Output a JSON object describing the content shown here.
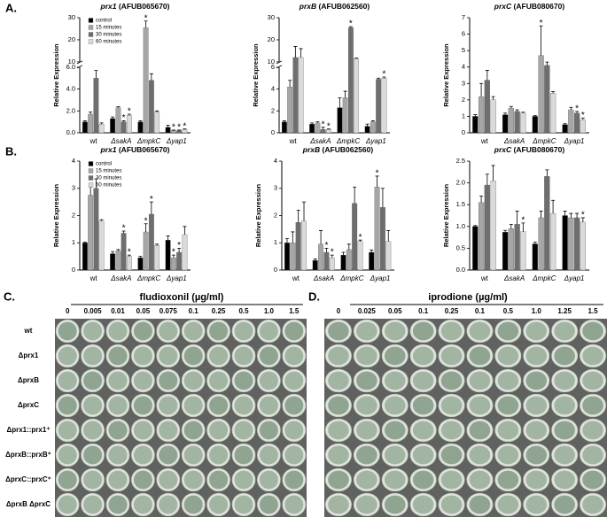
{
  "panel_labels": [
    "A.",
    "B."
  ],
  "chart_data": [
    {
      "type": "bar",
      "gene": "prx1",
      "locus": "(AFUB065670)",
      "ylabel": "Relative Expression",
      "categories": [
        "wt",
        "ΔsakA",
        "ΔmpkC",
        "Δyap1"
      ],
      "ylim": [
        0,
        30
      ],
      "ybreak": [
        6,
        10
      ],
      "yticks": [
        {
          "value": 0,
          "label": "0.0"
        },
        {
          "value": 2,
          "label": "2.0"
        },
        {
          "value": 4,
          "label": "4.0"
        },
        {
          "value": 6,
          "label": "6.0"
        },
        10,
        20,
        30
      ],
      "legend": "upper left",
      "series": [
        {
          "name": "control",
          "color": "#000000",
          "values": [
            1.0,
            1.3,
            1.0,
            0.5
          ],
          "errors": [
            0.1,
            0.15,
            0.1,
            0.2
          ]
        },
        {
          "name": "15 minutes",
          "color": "#a6a6a6",
          "values": [
            1.7,
            2.3,
            25.5,
            0.2
          ],
          "errors": [
            0.2,
            0.1,
            3.0,
            0.05
          ],
          "significance": [
            null,
            null,
            "*",
            "*"
          ]
        },
        {
          "name": "30 minutes",
          "color": "#6e6e6e",
          "values": [
            5.0,
            1.0,
            4.8,
            0.2
          ],
          "errors": [
            0.7,
            0.1,
            0.6,
            0.05
          ],
          "significance": [
            null,
            "*",
            null,
            "*"
          ]
        },
        {
          "name": "60 minutes",
          "color": "#dadada",
          "values": [
            0.8,
            1.6,
            1.9,
            0.3
          ],
          "errors": [
            0.1,
            0.1,
            0.1,
            0.05
          ],
          "significance": [
            null,
            "*",
            null,
            "*"
          ]
        }
      ]
    },
    {
      "type": "bar",
      "gene": "prxB",
      "locus": "(AFUB062560)",
      "ylabel": "Relative Expression",
      "categories": [
        "wt",
        "ΔsakA",
        "ΔmpkC",
        "Δyap1"
      ],
      "ylim": [
        0,
        30
      ],
      "ybreak": [
        6,
        10
      ],
      "yticks": [
        0,
        2,
        4,
        6,
        10,
        20,
        30
      ],
      "series": [
        {
          "color": "#000000",
          "values": [
            1.0,
            0.8,
            2.3,
            0.6
          ],
          "errors": [
            0.1,
            0.1,
            0.9,
            0.2
          ]
        },
        {
          "color": "#a6a6a6",
          "values": [
            4.2,
            0.9,
            3.2,
            1.0
          ],
          "errors": [
            0.6,
            0.1,
            0.6,
            0.1
          ]
        },
        {
          "color": "#6e6e6e",
          "values": [
            12,
            0.3,
            25.5,
            4.9
          ],
          "errors": [
            5,
            0.2,
            0.5,
            0.1
          ],
          "significance": [
            null,
            "*",
            "*",
            null
          ]
        },
        {
          "color": "#dadada",
          "values": [
            12,
            0.3,
            11.5,
            5.0
          ],
          "errors": [
            4,
            0.05,
            0.3,
            0.1
          ],
          "significance": [
            null,
            "*",
            null,
            "*"
          ]
        }
      ]
    },
    {
      "type": "bar",
      "gene": "prxC",
      "locus": "(AFUB080670)",
      "ylabel": "Relative Expression",
      "categories": [
        "wt",
        "ΔsakA",
        "ΔmpkC",
        "Δyap1"
      ],
      "ylim": [
        0,
        7
      ],
      "yticks": [
        0,
        1,
        2,
        3,
        4,
        5,
        6,
        7
      ],
      "series": [
        {
          "color": "#000000",
          "values": [
            1.0,
            1.1,
            1.0,
            0.5
          ],
          "errors": [
            0.1,
            0.1,
            0.05,
            0.05
          ]
        },
        {
          "color": "#a6a6a6",
          "values": [
            2.2,
            1.5,
            4.7,
            1.4
          ],
          "errors": [
            0.8,
            0.1,
            1.8,
            0.15
          ],
          "significance": [
            null,
            null,
            "*",
            null
          ]
        },
        {
          "color": "#6e6e6e",
          "values": [
            3.2,
            1.3,
            4.1,
            1.2
          ],
          "errors": [
            0.6,
            0.1,
            0.2,
            0.1
          ],
          "significance": [
            null,
            null,
            null,
            "*"
          ]
        },
        {
          "color": "#dadada",
          "values": [
            2.0,
            1.2,
            2.4,
            0.8
          ],
          "errors": [
            0.2,
            0.05,
            0.1,
            0.1
          ],
          "significance": [
            null,
            null,
            null,
            "*"
          ]
        }
      ]
    },
    {
      "type": "bar",
      "gene": "prx1",
      "locus": "(AFUB065670)",
      "ylabel": "Relative Expression",
      "categories": [
        "wt",
        "ΔsakA",
        "ΔmpkC",
        "Δyap1"
      ],
      "ylim": [
        0,
        4
      ],
      "yticks": [
        0,
        1,
        2,
        3,
        4
      ],
      "legend": "upper left",
      "series": [
        {
          "name": "control",
          "color": "#000000",
          "values": [
            1.0,
            0.6,
            0.45,
            1.1
          ],
          "errors": [
            0.02,
            0.08,
            0.05,
            0.15
          ]
        },
        {
          "name": "15 minutes",
          "color": "#a6a6a6",
          "values": [
            2.75,
            0.7,
            1.4,
            0.45
          ],
          "errors": [
            0.3,
            0.05,
            0.3,
            0.1
          ],
          "significance": [
            null,
            null,
            "*",
            "*"
          ]
        },
        {
          "name": "30 minutes",
          "color": "#6e6e6e",
          "values": [
            3.0,
            1.35,
            2.05,
            0.65
          ],
          "errors": [
            0.35,
            0.08,
            0.45,
            0.15
          ],
          "significance": [
            null,
            "*",
            "*",
            "*"
          ]
        },
        {
          "name": "60 minutes",
          "color": "#dadada",
          "values": [
            1.8,
            0.5,
            0.9,
            1.3
          ],
          "errors": [
            0.05,
            0.05,
            0.05,
            0.3
          ],
          "significance": [
            null,
            "*",
            null,
            null
          ]
        }
      ]
    },
    {
      "type": "bar",
      "gene": "prxB",
      "locus": "(AFUB062560)",
      "ylabel": "Relative Expression",
      "categories": [
        "wt",
        "ΔsakA",
        "ΔmpkC",
        "Δyap1"
      ],
      "ylim": [
        0,
        4
      ],
      "yticks": [
        0,
        1,
        2,
        3,
        4
      ],
      "series": [
        {
          "color": "#000000",
          "values": [
            1.0,
            0.35,
            0.55,
            0.65
          ],
          "errors": [
            0.15,
            0.05,
            0.1,
            0.08
          ]
        },
        {
          "color": "#a6a6a6",
          "values": [
            1.0,
            0.95,
            0.75,
            3.05
          ],
          "errors": [
            0.4,
            0.5,
            0.2,
            0.4
          ],
          "significance": [
            null,
            null,
            null,
            "*"
          ]
        },
        {
          "color": "#6e6e6e",
          "values": [
            1.75,
            0.65,
            2.45,
            2.3
          ],
          "errors": [
            0.45,
            0.15,
            0.6,
            0.7
          ],
          "significance": [
            null,
            "*",
            null,
            null
          ]
        },
        {
          "color": "#dadada",
          "values": [
            1.8,
            0.45,
            1.05,
            1.05
          ],
          "errors": [
            0.7,
            0.1,
            0.05,
            0.4
          ],
          "significance": [
            null,
            "*",
            "*",
            null
          ]
        }
      ]
    },
    {
      "type": "bar",
      "gene": "prxC",
      "locus": "(AFUB080670)",
      "ylabel": "Relative Expression",
      "categories": [
        "wt",
        "ΔsakA",
        "ΔmpkC",
        "Δyap1"
      ],
      "ylim": [
        0,
        2.5
      ],
      "yticks": [
        {
          "value": 0,
          "label": "0.0"
        },
        {
          "value": 0.5,
          "label": "0.5"
        },
        {
          "value": 1,
          "label": "1.0"
        },
        {
          "value": 1.5,
          "label": "1.5"
        },
        {
          "value": 2,
          "label": "2.0"
        },
        2.5
      ],
      "series": [
        {
          "color": "#000000",
          "values": [
            1.0,
            0.87,
            0.6,
            1.25
          ],
          "errors": [
            0.02,
            0.04,
            0.04,
            0.1
          ]
        },
        {
          "color": "#a6a6a6",
          "values": [
            1.55,
            0.95,
            1.2,
            1.2
          ],
          "errors": [
            0.15,
            0.1,
            0.15,
            0.1
          ]
        },
        {
          "color": "#6e6e6e",
          "values": [
            1.95,
            1.05,
            2.15,
            1.2
          ],
          "errors": [
            0.25,
            0.3,
            0.15,
            0.1
          ]
        },
        {
          "color": "#dadada",
          "values": [
            2.05,
            0.88,
            1.3,
            1.1
          ],
          "errors": [
            0.35,
            0.2,
            0.3,
            0.1
          ],
          "significance": [
            null,
            "*",
            null,
            "*"
          ]
        }
      ]
    }
  ],
  "plates": [
    {
      "letter": "C.",
      "compound": "fludioxonil (µg/ml)",
      "concentrations": [
        "0",
        "0.005",
        "0.01",
        "0.05",
        "0.075",
        "0.1",
        "0.25",
        "0.5",
        "1.0",
        "1.5"
      ],
      "strains": [
        "wt",
        "Δprx1",
        "ΔprxB",
        "ΔprxC",
        "Δprx1::prx1⁺",
        "ΔprxB::prxB⁺",
        "ΔprxC::prxC⁺",
        "ΔprxB ΔprxC"
      ]
    },
    {
      "letter": "D.",
      "compound": "iprodione (µg/ml)",
      "concentrations": [
        "0",
        "0.025",
        "0.05",
        "0.1",
        "0.25",
        "0.1",
        "0.5",
        "1.0",
        "1.25",
        "1.5"
      ]
    }
  ]
}
